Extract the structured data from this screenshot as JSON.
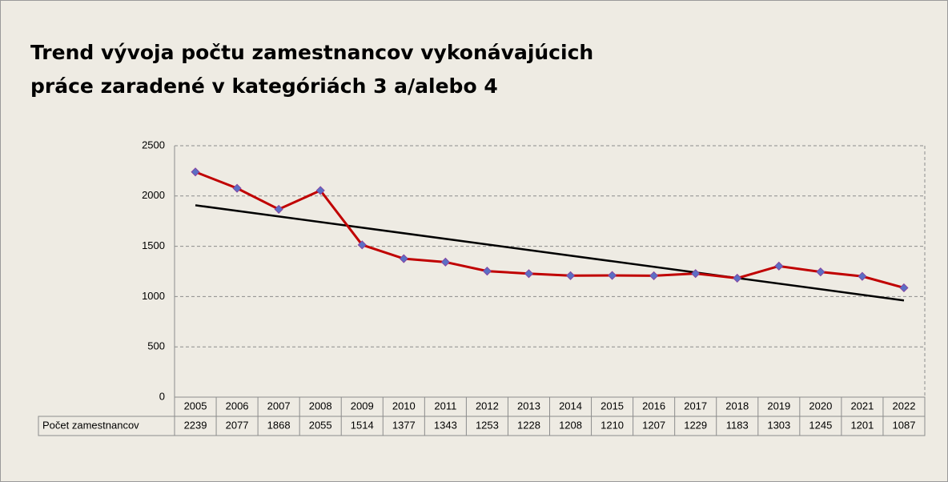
{
  "chart_data": {
    "type": "line",
    "title": [
      "Trend vývoja počtu zamestnancov vykonávajúcich",
      "práce  zaradené v kategóriách  3 a/alebo 4"
    ],
    "categories": [
      "2005",
      "2006",
      "2007",
      "2008",
      "2009",
      "2010",
      "2011",
      "2012",
      "2013",
      "2014",
      "2015",
      "2016",
      "2017",
      "2018",
      "2019",
      "2020",
      "2021",
      "2022"
    ],
    "series": [
      {
        "name": "Počet zamestnancov",
        "color": "#c00000",
        "marker_color": "#5b6fc4",
        "values": [
          2239,
          2077,
          1868,
          2055,
          1514,
          1377,
          1343,
          1253,
          1228,
          1208,
          1210,
          1207,
          1229,
          1183,
          1303,
          1245,
          1201,
          1087
        ]
      }
    ],
    "trendline": {
      "kind": "linear",
      "color": "#000000"
    },
    "ylim": [
      0,
      2500
    ],
    "yticks": [
      0,
      500,
      1000,
      1500,
      2000,
      2500
    ],
    "grid": true,
    "data_table": true
  }
}
